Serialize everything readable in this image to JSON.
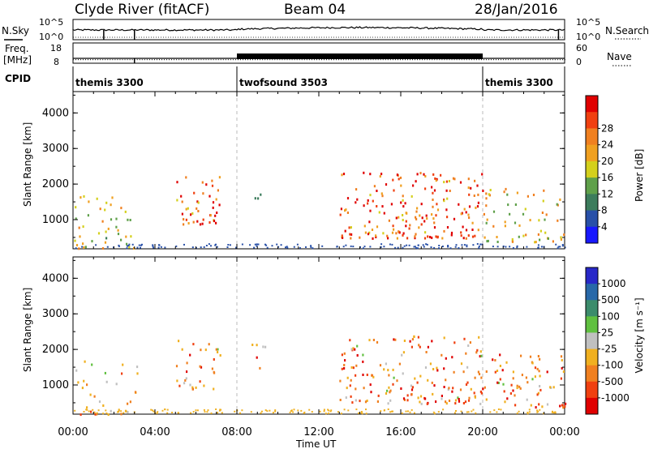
{
  "header": {
    "title": "Clyde River (fitACF)",
    "beam": "Beam 04",
    "date": "28/Jan/2016"
  },
  "left_labels": {
    "nsky": "N.Sky",
    "freq": "Freq.",
    "freq_unit": "[MHz]",
    "cpid": "CPID"
  },
  "right_labels": {
    "nsearch": "N.Search",
    "nave": "Nave"
  },
  "strip_ticks": {
    "noise_left": [
      "10^5",
      "10^0"
    ],
    "noise_right": [
      "10^5",
      "10^0"
    ],
    "freq_left": [
      "18",
      "8"
    ],
    "nave_right": [
      "60",
      "0"
    ]
  },
  "cpid_segments": [
    {
      "label": "themis 3300",
      "start_h": 0,
      "end_h": 8
    },
    {
      "label": "twofsound 3503",
      "start_h": 8,
      "end_h": 20
    },
    {
      "label": "themis 3300",
      "start_h": 20,
      "end_h": 24
    }
  ],
  "xaxis": {
    "label": "Time UT",
    "ticks": [
      "00:00",
      "04:00",
      "08:00",
      "12:00",
      "16:00",
      "20:00",
      "00:00"
    ],
    "range_h": [
      0,
      24
    ]
  },
  "chart_data": [
    {
      "type": "heatmap",
      "quantity": "power",
      "ylabel": "Slant Range [km]",
      "ylim": [
        180,
        4600
      ],
      "yticks": [
        "1000",
        "2000",
        "3000",
        "4000"
      ],
      "colorbar_label": "Power [dB]",
      "colorbar_ticks": [
        "4",
        "8",
        "12",
        "16",
        "20",
        "24",
        "28"
      ],
      "colors": [
        "#1818ff",
        "#2850a8",
        "#3c7c5c",
        "#5fa04a",
        "#d4d01c",
        "#f0a020",
        "#f08020",
        "#f04010",
        "#e00000"
      ],
      "scatter_regions": [
        {
          "t0": 0.0,
          "t1": 3.2,
          "r0": 200,
          "r1": 1700,
          "intensity": 0.55
        },
        {
          "t0": 5.0,
          "t1": 7.2,
          "r0": 900,
          "r1": 2300,
          "intensity": 0.85
        },
        {
          "t0": 8.7,
          "t1": 9.4,
          "r0": 1500,
          "r1": 2300,
          "intensity": 0.3
        },
        {
          "t0": 13.0,
          "t1": 20.0,
          "r0": 500,
          "r1": 2400,
          "intensity": 0.85
        },
        {
          "t0": 20.0,
          "t1": 24.0,
          "r0": 400,
          "r1": 1900,
          "intensity": 0.6
        }
      ]
    },
    {
      "type": "heatmap",
      "quantity": "velocity",
      "ylabel": "Slant Range [km]",
      "ylim": [
        180,
        4600
      ],
      "yticks": [
        "1000",
        "2000",
        "3000",
        "4000"
      ],
      "colorbar_label": "Velocity [m s⁻¹]",
      "colorbar_ticks": [
        "1000",
        "500",
        "100",
        "25",
        "-25",
        "-100",
        "-500",
        "-1000"
      ],
      "colors": [
        "#2828c8",
        "#2868a8",
        "#3c8c6c",
        "#60c040",
        "#c0c0c0",
        "#f0b020",
        "#f08020",
        "#f04010",
        "#e00000"
      ],
      "scatter_regions": [
        {
          "t0": 0.0,
          "t1": 3.2,
          "r0": 200,
          "r1": 1700,
          "intensity": 0.4
        },
        {
          "t0": 5.0,
          "t1": 7.2,
          "r0": 900,
          "r1": 2300,
          "intensity": 0.65
        },
        {
          "t0": 8.7,
          "t1": 9.4,
          "r0": 1500,
          "r1": 2300,
          "intensity": 0.65
        },
        {
          "t0": 13.0,
          "t1": 20.0,
          "r0": 500,
          "r1": 2400,
          "intensity": 0.75
        },
        {
          "t0": 20.0,
          "t1": 24.0,
          "r0": 400,
          "r1": 1900,
          "intensity": 0.7
        }
      ]
    }
  ]
}
